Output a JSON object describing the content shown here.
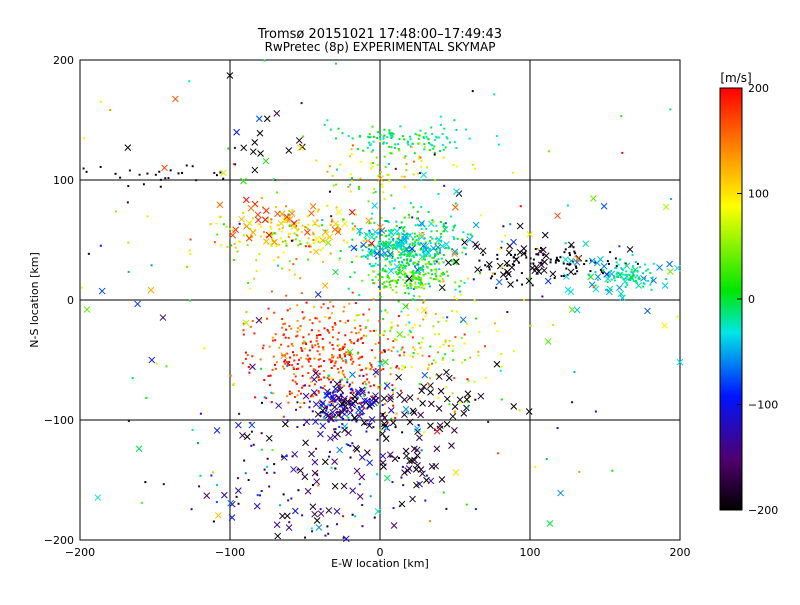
{
  "chart_data": {
    "type": "scatter",
    "title": "Tromsø 20151021 17:48:00–17:49:43",
    "subtitle": "RwPretec (8p) EXPERIMENTAL SKYMAP",
    "xlabel": "E-W location [km]",
    "ylabel": "N-S location [km]",
    "xlim": [
      -200,
      200
    ],
    "ylim": [
      -200,
      200
    ],
    "xticks": [
      -200,
      -100,
      0,
      100,
      200
    ],
    "yticks": [
      -200,
      -100,
      0,
      100,
      200
    ],
    "xtick_labels": [
      "−200",
      "−100",
      "0",
      "100",
      "200"
    ],
    "ytick_labels": [
      "−200",
      "−100",
      "0",
      "100",
      "200"
    ],
    "grid": true,
    "colorbar": {
      "label": "[m/s]",
      "range": [
        -200,
        200
      ],
      "ticks": [
        200,
        100,
        0,
        -100,
        -200
      ],
      "tick_labels": [
        "200",
        "100",
        "0",
        "−100",
        "−200"
      ],
      "colormap": "rainbow (black–purple–blue–cyan–green–yellow–red)"
    },
    "clusters": [
      {
        "marker": "dot",
        "cx": 20,
        "cy": 40,
        "sx": 18,
        "sy": 15,
        "n": 380,
        "v": -20,
        "vs": 25
      },
      {
        "marker": "x",
        "cx": 20,
        "cy": 45,
        "sx": 20,
        "sy": 10,
        "n": 60,
        "v": -50,
        "vs": 20
      },
      {
        "marker": "dot",
        "cx": 20,
        "cy": 18,
        "sx": 12,
        "sy": 5,
        "n": 110,
        "v": 30,
        "vs": 15
      },
      {
        "marker": "dot",
        "cx": 15,
        "cy": 135,
        "sx": 25,
        "sy": 6,
        "n": 110,
        "v": -20,
        "vs": 20
      },
      {
        "marker": "dot",
        "cx": 5,
        "cy": 110,
        "sx": 25,
        "sy": 12,
        "n": 70,
        "v": 60,
        "vs": 40
      },
      {
        "marker": "dot",
        "cx": -60,
        "cy": 55,
        "sx": 25,
        "sy": 12,
        "n": 170,
        "v": 90,
        "vs": 40
      },
      {
        "marker": "x",
        "cx": -55,
        "cy": 60,
        "sx": 25,
        "sy": 10,
        "n": 45,
        "v": 140,
        "vs": 40
      },
      {
        "marker": "dot",
        "cx": -35,
        "cy": -45,
        "sx": 25,
        "sy": 22,
        "n": 380,
        "v": 175,
        "vs": 30
      },
      {
        "marker": "dot",
        "cx": 25,
        "cy": -40,
        "sx": 25,
        "sy": 25,
        "n": 150,
        "v": 70,
        "vs": 50
      },
      {
        "marker": "x",
        "cx": -25,
        "cy": -90,
        "sx": 15,
        "sy": 12,
        "n": 70,
        "v": -130,
        "vs": 30
      },
      {
        "marker": "dot",
        "cx": -25,
        "cy": -88,
        "sx": 12,
        "sy": 10,
        "n": 90,
        "v": -120,
        "vs": 20
      },
      {
        "marker": "x",
        "cx": 20,
        "cy": -90,
        "sx": 30,
        "sy": 15,
        "n": 55,
        "v": -190,
        "vs": 12
      },
      {
        "marker": "dot",
        "cx": 110,
        "cy": 30,
        "sx": 25,
        "sy": 8,
        "n": 90,
        "v": -195,
        "vs": 8
      },
      {
        "marker": "x",
        "cx": 100,
        "cy": 35,
        "sx": 25,
        "sy": 12,
        "n": 40,
        "v": -195,
        "vs": 8
      },
      {
        "marker": "dot",
        "cx": 165,
        "cy": 20,
        "sx": 12,
        "sy": 6,
        "n": 90,
        "v": -30,
        "vs": 10
      },
      {
        "marker": "x",
        "cx": 150,
        "cy": 20,
        "sx": 20,
        "sy": 10,
        "n": 35,
        "v": -50,
        "vs": 25
      },
      {
        "marker": "x",
        "cx": -45,
        "cy": -150,
        "sx": 35,
        "sy": 25,
        "n": 60,
        "v": -150,
        "vs": 30
      },
      {
        "marker": "dot",
        "cx": -40,
        "cy": -150,
        "sx": 40,
        "sy": 30,
        "n": 90,
        "v": -140,
        "vs": 50
      },
      {
        "marker": "x",
        "cx": 20,
        "cy": -140,
        "sx": 10,
        "sy": 10,
        "n": 22,
        "v": -190,
        "vs": 10
      },
      {
        "marker": "dot",
        "cx": -140,
        "cy": 105,
        "sx": 40,
        "sy": 5,
        "n": 30,
        "v": -190,
        "vs": 12
      },
      {
        "marker": "x",
        "cx": -80,
        "cy": 140,
        "sx": 15,
        "sy": 15,
        "n": 12,
        "v": -190,
        "vs": 15
      },
      {
        "marker": "dot",
        "cx": 0,
        "cy": 0,
        "sx": 110,
        "sy": 110,
        "n": 220,
        "v": 0,
        "vs": 120
      },
      {
        "marker": "x",
        "cx": 0,
        "cy": 0,
        "sx": 110,
        "sy": 110,
        "n": 90,
        "v": 0,
        "vs": 120
      }
    ]
  }
}
